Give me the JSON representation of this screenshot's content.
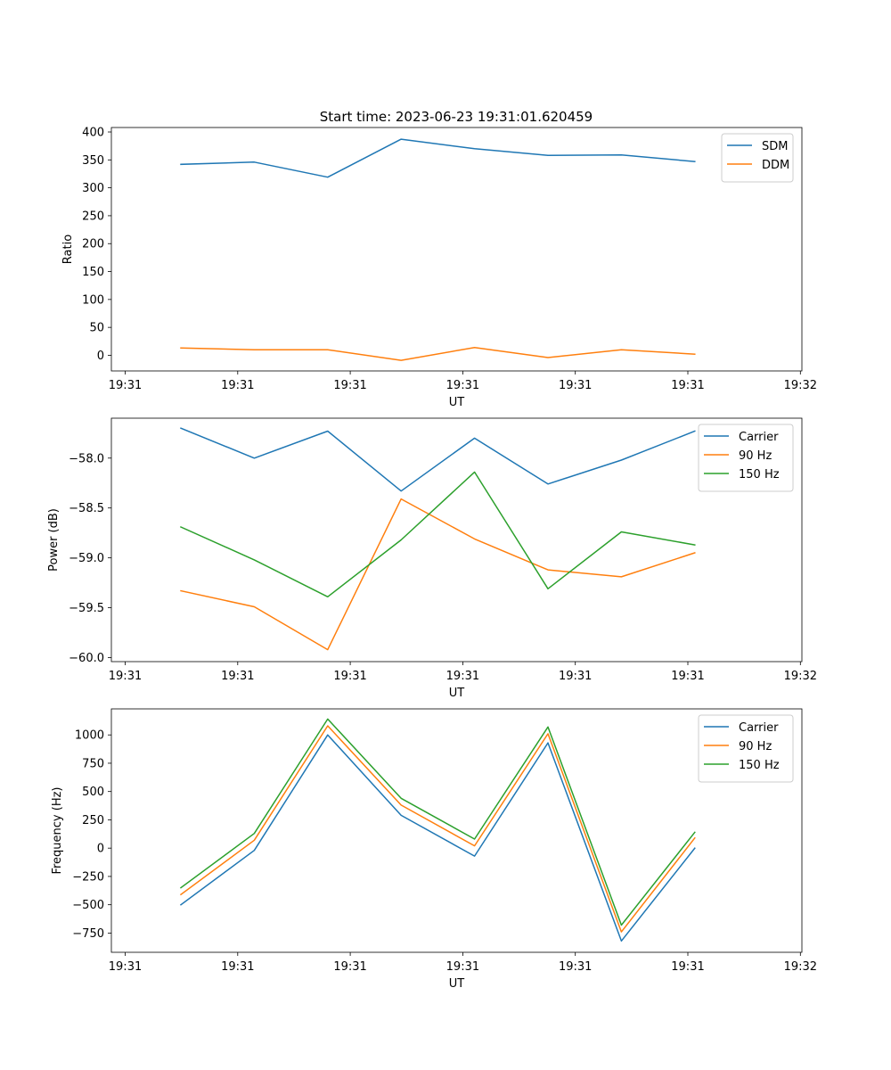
{
  "figure": {
    "title": "Start time: 2023-06-23 19:31:01.620459"
  },
  "colors": {
    "blue": "#1f77b4",
    "orange": "#ff7f0e",
    "green": "#2ca02c"
  },
  "chart_data": [
    {
      "type": "line",
      "title": "Start time: 2023-06-23 19:31:01.620459",
      "xlabel": "UT",
      "ylabel": "Ratio",
      "x_tick_labels": [
        "19:31",
        "19:31",
        "19:31",
        "19:31",
        "19:31",
        "19:31",
        "19:32"
      ],
      "ylim": [
        -28,
        408
      ],
      "y_ticks": [
        0,
        50,
        100,
        150,
        200,
        250,
        300,
        350,
        400
      ],
      "y_tick_labels": [
        "0",
        "50",
        "100",
        "150",
        "200",
        "250",
        "300",
        "350",
        "400"
      ],
      "legend_position": "upper right",
      "grid": false,
      "series": [
        {
          "name": "SDM",
          "color": "#1f77b4",
          "values": [
            342,
            346,
            319,
            387,
            370,
            358,
            359,
            347
          ]
        },
        {
          "name": "DDM",
          "color": "#ff7f0e",
          "values": [
            13,
            10,
            10,
            -9,
            14,
            -4,
            10,
            2
          ]
        }
      ]
    },
    {
      "type": "line",
      "title": "",
      "xlabel": "UT",
      "ylabel": "Power (dB)",
      "x_tick_labels": [
        "19:31",
        "19:31",
        "19:31",
        "19:31",
        "19:31",
        "19:31",
        "19:32"
      ],
      "ylim": [
        -60.04,
        -57.6
      ],
      "y_ticks": [
        -60.0,
        -59.5,
        -59.0,
        -58.5,
        -58.0
      ],
      "y_tick_labels": [
        "−60.0",
        "−59.5",
        "−59.0",
        "−58.5",
        "−58.0"
      ],
      "legend_position": "upper right",
      "grid": false,
      "series": [
        {
          "name": "Carrier",
          "color": "#1f77b4",
          "values": [
            -57.7,
            -58.0,
            -57.73,
            -58.33,
            -57.8,
            -58.26,
            -58.02,
            -57.73
          ]
        },
        {
          "name": "90 Hz",
          "color": "#ff7f0e",
          "values": [
            -59.33,
            -59.49,
            -59.92,
            -58.41,
            -58.81,
            -59.12,
            -59.19,
            -58.95
          ]
        },
        {
          "name": "150 Hz",
          "color": "#2ca02c",
          "values": [
            -58.69,
            -59.02,
            -59.39,
            -58.82,
            -58.14,
            -59.31,
            -58.74,
            -58.87
          ]
        }
      ]
    },
    {
      "type": "line",
      "title": "",
      "xlabel": "UT",
      "ylabel": "Frequency (Hz)",
      "x_tick_labels": [
        "19:31",
        "19:31",
        "19:31",
        "19:31",
        "19:31",
        "19:31",
        "19:32"
      ],
      "ylim": [
        -920,
        1230
      ],
      "y_ticks": [
        -750,
        -500,
        -250,
        0,
        250,
        500,
        750,
        1000
      ],
      "y_tick_labels": [
        "−750",
        "−500",
        "−250",
        "0",
        "250",
        "500",
        "750",
        "1000"
      ],
      "legend_position": "upper right",
      "grid": false,
      "series": [
        {
          "name": "Carrier",
          "color": "#1f77b4",
          "values": [
            -500,
            -20,
            1000,
            290,
            -70,
            930,
            -820,
            0
          ]
        },
        {
          "name": "90 Hz",
          "color": "#ff7f0e",
          "values": [
            -410,
            70,
            1080,
            380,
            20,
            1010,
            -740,
            90
          ]
        },
        {
          "name": "150 Hz",
          "color": "#2ca02c",
          "values": [
            -350,
            130,
            1140,
            440,
            80,
            1070,
            -680,
            140
          ]
        }
      ]
    }
  ]
}
